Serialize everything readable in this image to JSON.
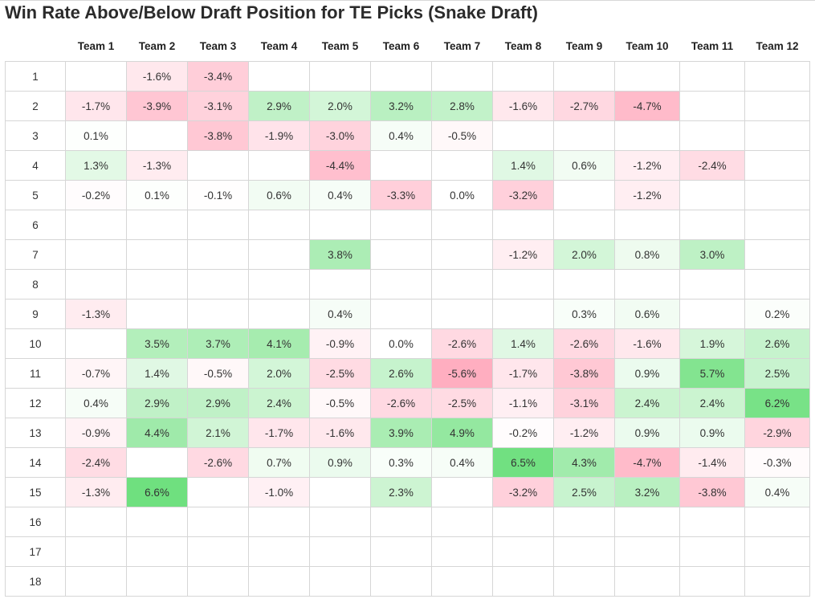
{
  "chart_data": {
    "type": "heatmap",
    "title": "Win Rate Above/Below Draft Position for TE Picks (Snake Draft)",
    "columns": [
      "Team 1",
      "Team 2",
      "Team 3",
      "Team 4",
      "Team 5",
      "Team 6",
      "Team 7",
      "Team 8",
      "Team 9",
      "Team 10",
      "Team 11",
      "Team 12"
    ],
    "rows": [
      "1",
      "2",
      "3",
      "4",
      "5",
      "6",
      "7",
      "8",
      "9",
      "10",
      "11",
      "12",
      "13",
      "14",
      "15",
      "16",
      "17",
      "18"
    ],
    "unit": "%",
    "values": [
      [
        null,
        -1.6,
        -3.4,
        null,
        null,
        null,
        null,
        null,
        null,
        null,
        null,
        null
      ],
      [
        -1.7,
        -3.9,
        -3.1,
        2.9,
        2.0,
        3.2,
        2.8,
        -1.6,
        -2.7,
        -4.7,
        null,
        null
      ],
      [
        0.1,
        null,
        -3.8,
        -1.9,
        -3.0,
        0.4,
        -0.5,
        null,
        null,
        null,
        null,
        null
      ],
      [
        1.3,
        -1.3,
        null,
        null,
        -4.4,
        null,
        null,
        1.4,
        0.6,
        -1.2,
        -2.4,
        null
      ],
      [
        -0.2,
        0.1,
        -0.1,
        0.6,
        0.4,
        -3.3,
        0.0,
        -3.2,
        null,
        -1.2,
        null,
        null
      ],
      [
        null,
        null,
        null,
        null,
        null,
        null,
        null,
        null,
        null,
        null,
        null,
        null
      ],
      [
        null,
        null,
        null,
        null,
        3.8,
        null,
        null,
        -1.2,
        2.0,
        0.8,
        3.0,
        null
      ],
      [
        null,
        null,
        null,
        null,
        null,
        null,
        null,
        null,
        null,
        null,
        null,
        null
      ],
      [
        -1.3,
        null,
        null,
        null,
        0.4,
        null,
        null,
        null,
        0.3,
        0.6,
        null,
        0.2
      ],
      [
        null,
        3.5,
        3.7,
        4.1,
        -0.9,
        0.0,
        -2.6,
        1.4,
        -2.6,
        -1.6,
        1.9,
        2.6
      ],
      [
        -0.7,
        1.4,
        -0.5,
        2.0,
        -2.5,
        2.6,
        -5.6,
        -1.7,
        -3.8,
        0.9,
        5.7,
        2.5
      ],
      [
        0.4,
        2.9,
        2.9,
        2.4,
        -0.5,
        -2.6,
        -2.5,
        -1.1,
        -3.1,
        2.4,
        2.4,
        6.2
      ],
      [
        -0.9,
        4.4,
        2.1,
        -1.7,
        -1.6,
        3.9,
        4.9,
        -0.2,
        -1.2,
        0.9,
        0.9,
        -2.9
      ],
      [
        -2.4,
        null,
        -2.6,
        0.7,
        0.9,
        0.3,
        0.4,
        6.5,
        4.3,
        -4.7,
        -1.4,
        -0.3
      ],
      [
        -1.3,
        6.6,
        null,
        -1.0,
        null,
        2.3,
        null,
        -3.2,
        2.5,
        3.2,
        -3.8,
        0.4
      ],
      [
        null,
        null,
        null,
        null,
        null,
        null,
        null,
        null,
        null,
        null,
        null,
        null
      ],
      [
        null,
        null,
        null,
        null,
        null,
        null,
        null,
        null,
        null,
        null,
        null,
        null
      ],
      [
        null,
        null,
        null,
        null,
        null,
        null,
        null,
        null,
        null,
        null,
        null,
        null
      ]
    ],
    "colors": {
      "positive_max": "#6fe07f",
      "negative_max": "#ff9fb5",
      "neutral": "#ffffff"
    }
  }
}
